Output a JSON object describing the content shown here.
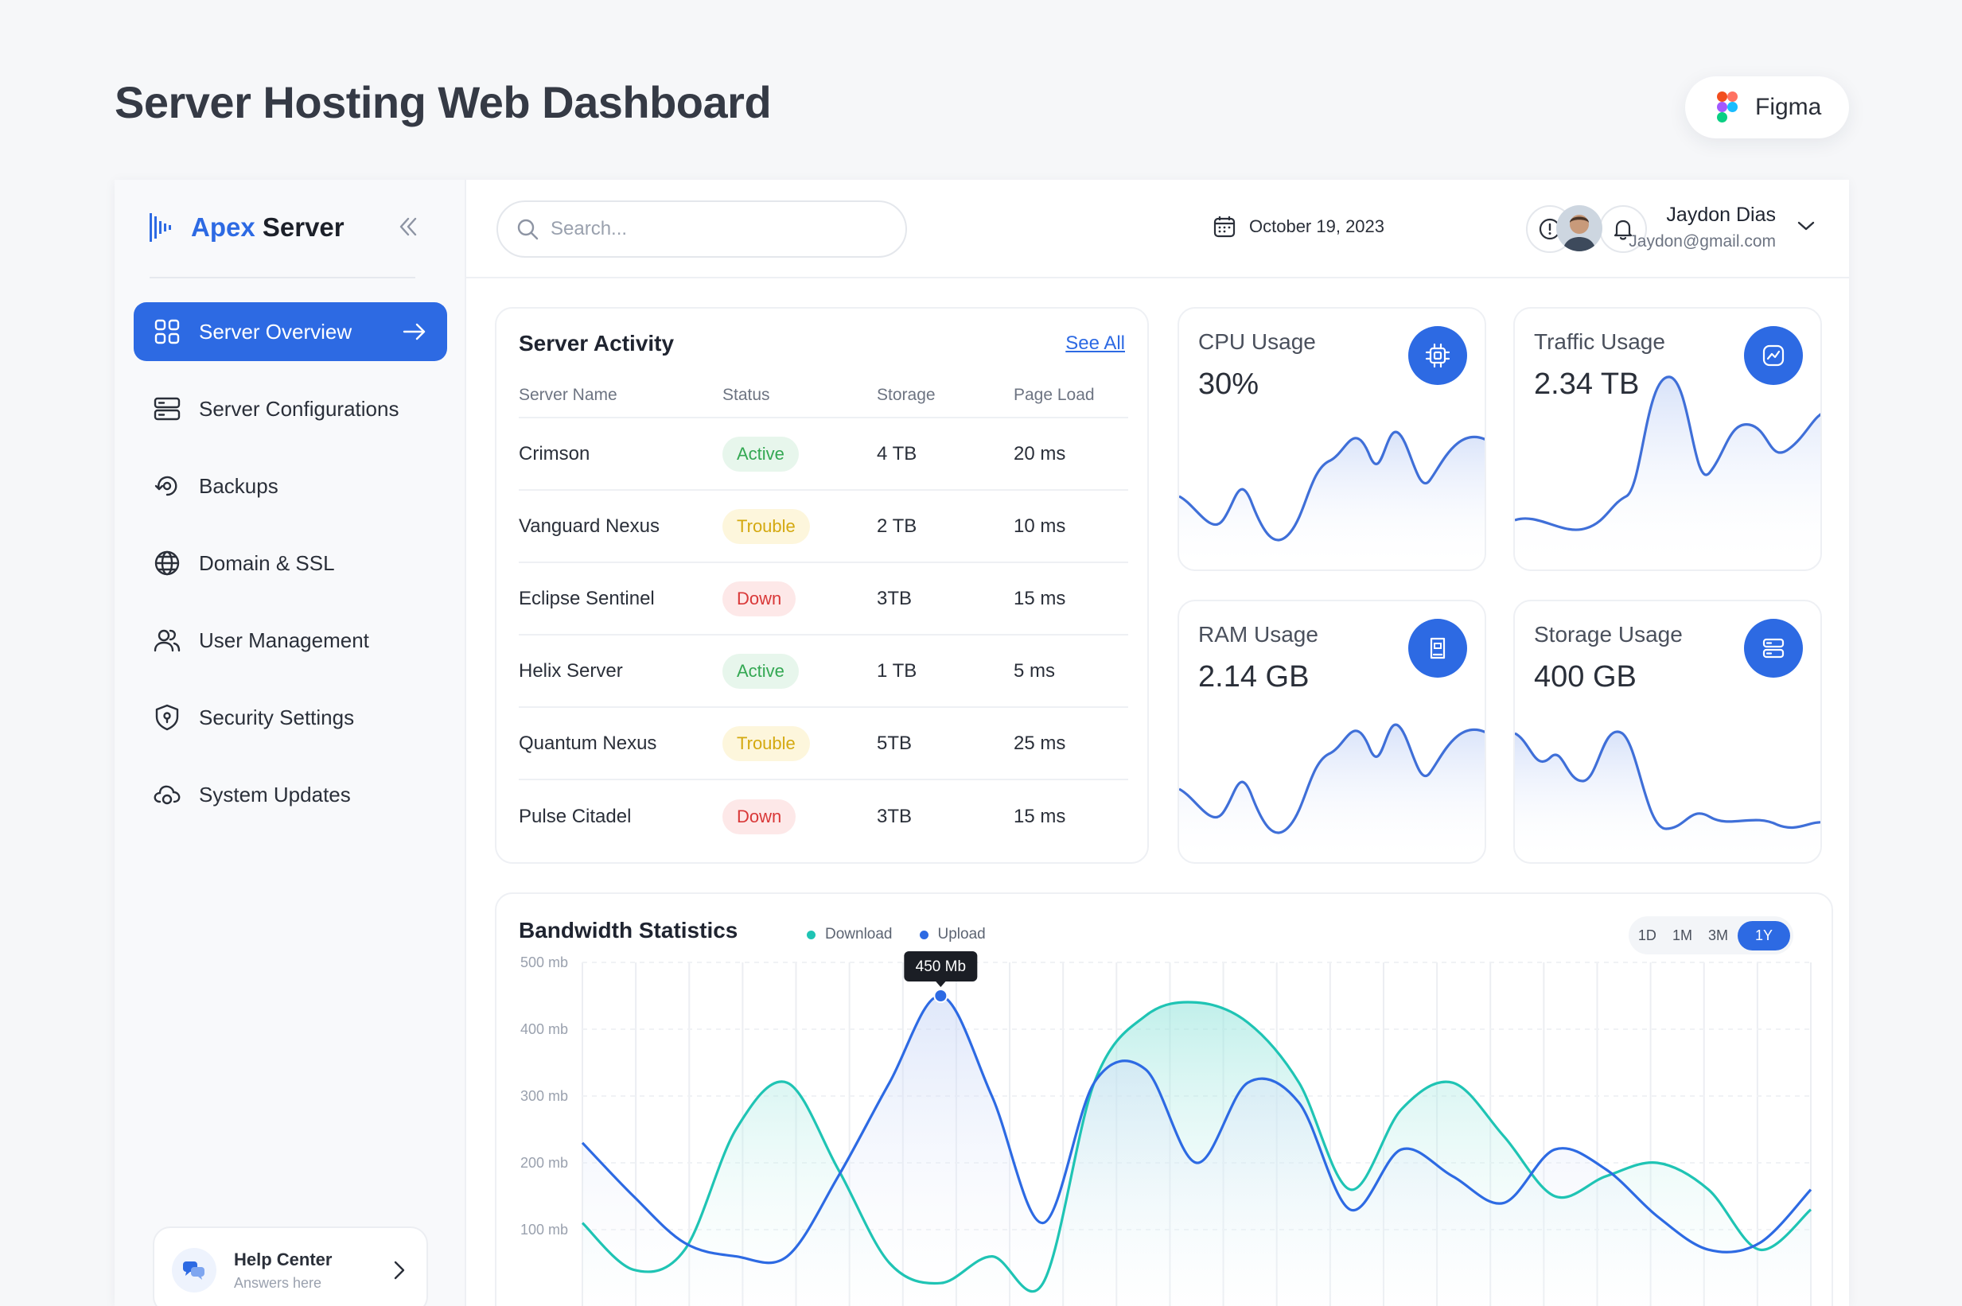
{
  "page": {
    "heading": "Server Hosting Web Dashboard",
    "figma_label": "Figma"
  },
  "brand": {
    "name_accent": "Apex",
    "name_rest": "Server",
    "color": "#2d6ae3"
  },
  "sidebar": {
    "items": [
      {
        "label": "Server Overview",
        "icon": "grid-icon",
        "active": true
      },
      {
        "label": "Server Configurations",
        "icon": "server-rack-icon"
      },
      {
        "label": "Backups",
        "icon": "backup-icon"
      },
      {
        "label": "Domain & SSL",
        "icon": "globe-icon"
      },
      {
        "label": "User Management",
        "icon": "users-icon"
      },
      {
        "label": "Security Settings",
        "icon": "shield-icon"
      },
      {
        "label": "System Updates",
        "icon": "cloud-sync-icon"
      }
    ],
    "help": {
      "title": "Help Center",
      "subtitle": "Answers here"
    }
  },
  "topbar": {
    "search_placeholder": "Search...",
    "date": "October 19, 2023",
    "user": {
      "name": "Jaydon Dias",
      "email": "Jaydon@gmail.com"
    }
  },
  "activity": {
    "title": "Server Activity",
    "see_all": "See All",
    "columns": [
      "Server Name",
      "Status",
      "Storage",
      "Page Load"
    ],
    "rows": [
      {
        "name": "Crimson",
        "status": "Active",
        "storage": "4 TB",
        "load": "20 ms"
      },
      {
        "name": "Vanguard Nexus",
        "status": "Trouble",
        "storage": "2 TB",
        "load": "10 ms"
      },
      {
        "name": "Eclipse Sentinel",
        "status": "Down",
        "storage": "3TB",
        "load": "15 ms"
      },
      {
        "name": "Helix Server",
        "status": "Active",
        "storage": "1 TB",
        "load": "5 ms"
      },
      {
        "name": "Quantum Nexus",
        "status": "Trouble",
        "storage": "5TB",
        "load": "25 ms"
      },
      {
        "name": "Pulse Citadel",
        "status": "Down",
        "storage": "3TB",
        "load": "15 ms"
      }
    ],
    "status_colors": {
      "Active": {
        "bg": "#e7f6ec",
        "fg": "#34a853"
      },
      "Trouble": {
        "bg": "#fdf6dc",
        "fg": "#d4a910"
      },
      "Down": {
        "bg": "#fde8e8",
        "fg": "#d93838"
      }
    }
  },
  "metrics": [
    {
      "title": "CPU Usage",
      "value": "30%",
      "icon": "cpu-chip-icon"
    },
    {
      "title": "Traffic Usage",
      "value": "2.34 TB",
      "icon": "chart-line-icon"
    },
    {
      "title": "RAM Usage",
      "value": "2.14 GB",
      "icon": "memory-card-icon"
    },
    {
      "title": "Storage Usage",
      "value": "400 GB",
      "icon": "database-icon"
    }
  ],
  "bandwidth": {
    "title": "Bandwidth Statistics",
    "legend": [
      {
        "name": "Download",
        "color": "#1fc4b4"
      },
      {
        "name": "Upload",
        "color": "#2d6ae3"
      }
    ],
    "ranges": [
      "1D",
      "1M",
      "3M",
      "1Y"
    ],
    "active_range": "1Y",
    "tooltip": "450 Mb"
  },
  "chart_data": {
    "type": "line",
    "title": "Bandwidth Statistics",
    "y_ticks": [
      "500 mb",
      "400 mb",
      "300 mb",
      "200 mb",
      "100 mb"
    ],
    "ylim": [
      0,
      500
    ],
    "grid": true,
    "legend_position": "top",
    "series": [
      {
        "name": "Download",
        "color": "#1fc4b4",
        "x": [
          0,
          30,
          60,
          90,
          120,
          150,
          180,
          210,
          240,
          270,
          300,
          330,
          360,
          390,
          420,
          450,
          480,
          510,
          540,
          570,
          600,
          630,
          660,
          690,
          720
        ],
        "values": [
          110,
          40,
          70,
          250,
          320,
          190,
          50,
          20,
          60,
          20,
          320,
          420,
          440,
          410,
          320,
          160,
          280,
          320,
          240,
          150,
          180,
          200,
          160,
          70,
          130
        ]
      },
      {
        "name": "Upload",
        "color": "#2d6ae3",
        "x": [
          0,
          30,
          60,
          90,
          120,
          150,
          180,
          210,
          240,
          270,
          300,
          330,
          360,
          390,
          420,
          450,
          480,
          510,
          540,
          570,
          600,
          630,
          660,
          690,
          720
        ],
        "values": [
          230,
          150,
          80,
          60,
          60,
          180,
          320,
          450,
          300,
          110,
          320,
          340,
          200,
          320,
          290,
          130,
          220,
          180,
          140,
          220,
          190,
          120,
          70,
          80,
          160
        ]
      }
    ],
    "annotations": [
      {
        "series": "Upload",
        "x": 210,
        "y": 450,
        "label": "450 Mb"
      }
    ]
  }
}
